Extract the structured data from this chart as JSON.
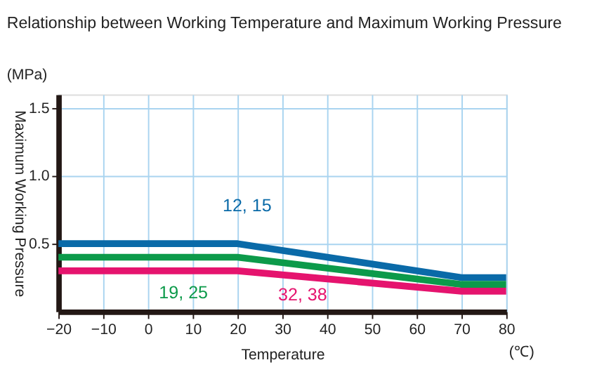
{
  "chart_data": {
    "type": "line",
    "title": "Relationship between Working Temperature and Maximum Working Pressure",
    "xlabel": "Temperature",
    "ylabel": "Maximum Working Pressure",
    "x": [
      -20,
      20,
      70,
      80
    ],
    "series": [
      {
        "color": "#0a6aa8",
        "values": [
          0.5,
          0.5,
          0.25,
          0.25
        ]
      },
      {
        "color": "#0c9a4a",
        "values": [
          0.4,
          0.4,
          0.2,
          0.2
        ]
      },
      {
        "color": "#e5146e",
        "values": [
          0.3,
          0.3,
          0.15,
          0.15
        ]
      }
    ],
    "xlim": [
      -20,
      80
    ],
    "xticks": [
      -20,
      -10,
      0,
      10,
      20,
      30,
      40,
      50,
      60,
      70,
      80
    ],
    "ylim": [
      0,
      1.6
    ],
    "yticks": [
      0.5,
      {
        "value": 1.0,
        "label": "1.0"
      },
      1.5
    ],
    "grid": true,
    "marker": "none",
    "line_style": "solid",
    "annotations": [
      {
        "text": "12, 15",
        "x": 10,
        "y": 0.5
      },
      {
        "text": "19, 25",
        "x": -3,
        "y": 0.4
      },
      {
        "text": "32, 38",
        "x": 23,
        "y": 0.3
      },
      "(MPa)",
      "(℃)"
    ]
  }
}
